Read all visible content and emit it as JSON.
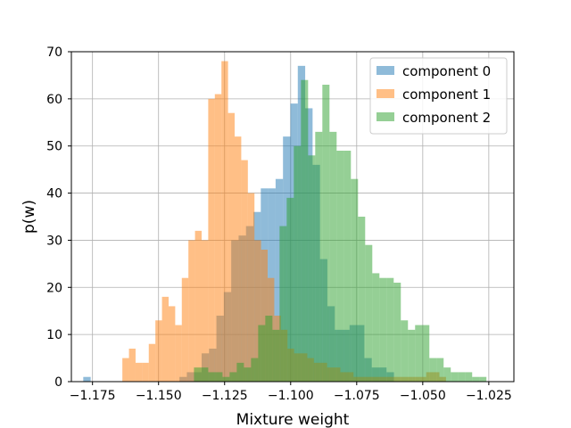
{
  "chart_data": {
    "type": "histogram",
    "title": "",
    "xlabel": "Mixture weight",
    "ylabel": "p(w)",
    "xlim": [
      -1.183,
      -1.0155
    ],
    "ylim": [
      0,
      70
    ],
    "xticks": [
      -1.175,
      -1.15,
      -1.125,
      -1.1,
      -1.075,
      -1.05,
      -1.025
    ],
    "xtick_labels": [
      "−1.175",
      "−1.150",
      "−1.125",
      "−1.100",
      "−1.075",
      "−1.050",
      "−1.025"
    ],
    "yticks": [
      0,
      10,
      20,
      30,
      40,
      50,
      60,
      70
    ],
    "ytick_labels": [
      "0",
      "10",
      "20",
      "30",
      "40",
      "50",
      "60",
      "70"
    ],
    "grid": true,
    "legend_position": "top-right",
    "series": [
      {
        "name": "component 0",
        "color": "#1f77b4",
        "alpha": 0.5,
        "bin_edges": [
          -1.1785,
          -1.1757,
          -1.1729,
          -1.1701,
          -1.1673,
          -1.1645,
          -1.1617,
          -1.1589,
          -1.1561,
          -1.1533,
          -1.1505,
          -1.1477,
          -1.1449,
          -1.1421,
          -1.1393,
          -1.1365,
          -1.1337,
          -1.1309,
          -1.1281,
          -1.1253,
          -1.1225,
          -1.1197,
          -1.1169,
          -1.1141,
          -1.1113,
          -1.1085,
          -1.1057,
          -1.1029,
          -1.1001,
          -1.0973,
          -1.0945,
          -1.0917,
          -1.0889,
          -1.0861,
          -1.0833,
          -1.0805,
          -1.0777,
          -1.0749,
          -1.0721,
          -1.0693,
          -1.0665,
          -1.0637,
          -1.0609,
          -1.0581
        ],
        "counts": [
          1,
          0,
          0,
          0,
          0,
          0,
          0,
          0,
          0,
          0,
          0,
          0,
          0,
          1,
          2,
          2,
          6,
          7,
          14,
          19,
          30,
          31,
          33,
          36,
          41,
          41,
          43,
          52,
          59,
          67,
          58,
          46,
          26,
          16,
          11,
          11,
          12,
          12,
          5,
          3,
          3,
          2,
          0
        ]
      },
      {
        "name": "component 1",
        "color": "#ff7f0e",
        "alpha": 0.5,
        "bin_edges": [
          -1.1637,
          -1.1612,
          -1.1587,
          -1.1562,
          -1.1537,
          -1.1512,
          -1.1487,
          -1.1462,
          -1.1437,
          -1.1412,
          -1.1387,
          -1.1362,
          -1.1337,
          -1.1312,
          -1.1287,
          -1.1262,
          -1.1237,
          -1.1212,
          -1.1187,
          -1.1162,
          -1.1137,
          -1.1112,
          -1.1087,
          -1.1062,
          -1.1037,
          -1.1012,
          -1.0987,
          -1.0962,
          -1.0937,
          -1.0912,
          -1.0887,
          -1.0862,
          -1.0837,
          -1.0812,
          -1.0787,
          -1.0762,
          -1.0737,
          -1.0712,
          -1.0687,
          -1.0662,
          -1.0637,
          -1.0612,
          -1.0587,
          -1.0562,
          -1.0537,
          -1.0512,
          -1.0487,
          -1.0462,
          -1.0437,
          -1.0412
        ],
        "counts": [
          5,
          7,
          4,
          4,
          8,
          13,
          18,
          16,
          12,
          22,
          30,
          32,
          30,
          60,
          61,
          68,
          57,
          52,
          47,
          40,
          30,
          28,
          22,
          14,
          11,
          7,
          6,
          6,
          5,
          4,
          4,
          3,
          3,
          2,
          2,
          1,
          1,
          1,
          1,
          1,
          1,
          1,
          1,
          1,
          1,
          1,
          2,
          2,
          1
        ]
      },
      {
        "name": "component 2",
        "color": "#2ca02c",
        "alpha": 0.5,
        "bin_edges": [
          -1.1366,
          -1.1339,
          -1.1312,
          -1.1285,
          -1.1258,
          -1.1231,
          -1.1204,
          -1.1177,
          -1.115,
          -1.1123,
          -1.1096,
          -1.1069,
          -1.1042,
          -1.1015,
          -1.0988,
          -1.0961,
          -1.0934,
          -1.0907,
          -1.088,
          -1.0853,
          -1.0826,
          -1.0799,
          -1.0772,
          -1.0745,
          -1.0718,
          -1.0691,
          -1.0664,
          -1.0637,
          -1.061,
          -1.0583,
          -1.0556,
          -1.0529,
          -1.0502,
          -1.0475,
          -1.0448,
          -1.0421,
          -1.0394,
          -1.0367,
          -1.034,
          -1.0313,
          -1.0286,
          -1.0259
        ],
        "counts": [
          3,
          3,
          2,
          2,
          1,
          2,
          4,
          3,
          5,
          12,
          14,
          11,
          33,
          39,
          50,
          64,
          48,
          53,
          63,
          53,
          49,
          49,
          43,
          35,
          29,
          23,
          22,
          22,
          21,
          13,
          11,
          12,
          12,
          5,
          5,
          3,
          2,
          2,
          2,
          1,
          1
        ]
      }
    ]
  }
}
